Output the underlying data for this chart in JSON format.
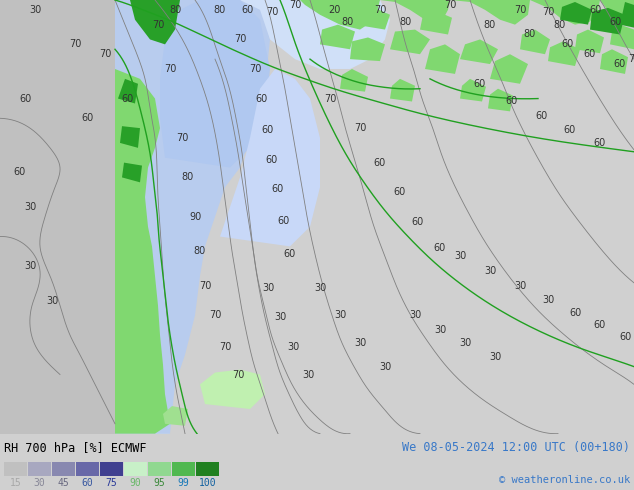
{
  "title_left": "RH 700 hPa [%] ECMWF",
  "title_right": "We 08-05-2024 12:00 UTC (00+180)",
  "copyright": "© weatheronline.co.uk",
  "legend_values": [
    "15",
    "30",
    "45",
    "60",
    "75",
    "90",
    "95",
    "99",
    "100"
  ],
  "legend_colors": [
    "#c0c0c0",
    "#a8a8c0",
    "#8888b0",
    "#6868a8",
    "#404090",
    "#c8f0c8",
    "#90d890",
    "#50b850",
    "#208020"
  ],
  "legend_text_colors": [
    "#a8a8a8",
    "#888898",
    "#686880",
    "#3858a0",
    "#283898",
    "#68b868",
    "#388838",
    "#1878b8",
    "#1060a0"
  ],
  "bar_bg": "#ffffff",
  "fig_width": 6.34,
  "fig_height": 4.9,
  "dpi": 100,
  "map_bg": "#c8c8c8",
  "ocean_color": "#b8c8d8",
  "blue_light": "#c8d8f0",
  "blue_mid": "#a8c0e8",
  "blue_dark": "#8090c8",
  "green_light": "#c0f0b0",
  "green_mid": "#80d870",
  "green_dark": "#28a028",
  "contour_color": "#808080",
  "contour_green": "#20a020",
  "label_color": "#202020"
}
